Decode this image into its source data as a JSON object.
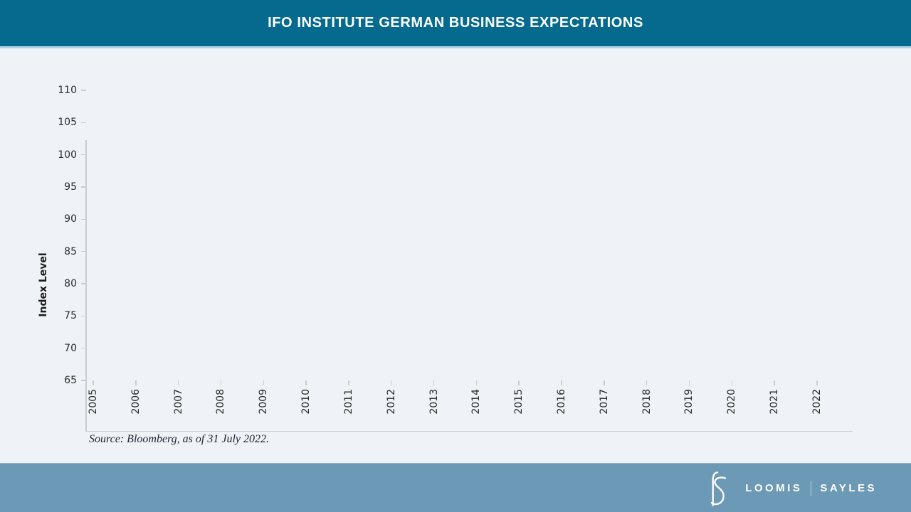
{
  "header": {
    "title": "IFO INSTITUTE GERMAN BUSINESS EXPECTATIONS",
    "bg_color": "#056A8E",
    "accent_border_color": "#AFD0E4"
  },
  "page": {
    "bg_color": "#EFF2F6"
  },
  "chart": {
    "ylabel": "Index Level",
    "source": "Source: Bloomberg, as of 31 July 2022.",
    "axis_color": "#C9CED3",
    "tick_label_color": "#2B2B2B"
  },
  "chart_data": {
    "type": "line",
    "title": "IFO INSTITUTE GERMAN BUSINESS EXPECTATIONS",
    "xlabel": "",
    "ylabel": "Index Level",
    "x_ticks": [
      "2005",
      "2006",
      "2007",
      "2008",
      "2009",
      "2010",
      "2011",
      "2012",
      "2013",
      "2014",
      "2015",
      "2016",
      "2017",
      "2018",
      "2019",
      "2020",
      "2021",
      "2022"
    ],
    "y_ticks": [
      110,
      105,
      100,
      95,
      90,
      85,
      80,
      75,
      70,
      65
    ],
    "ylim": [
      65,
      110
    ],
    "grid": false,
    "legend": null,
    "series": [],
    "note": "Axes and ticks are drawn but no data series is plotted (empty plot area)."
  },
  "footer": {
    "bg_color": "#6C99B5",
    "logo": "loomis-sayles-ls-monogram",
    "brand_left": "LOOMIS",
    "brand_right": "SAYLES"
  }
}
